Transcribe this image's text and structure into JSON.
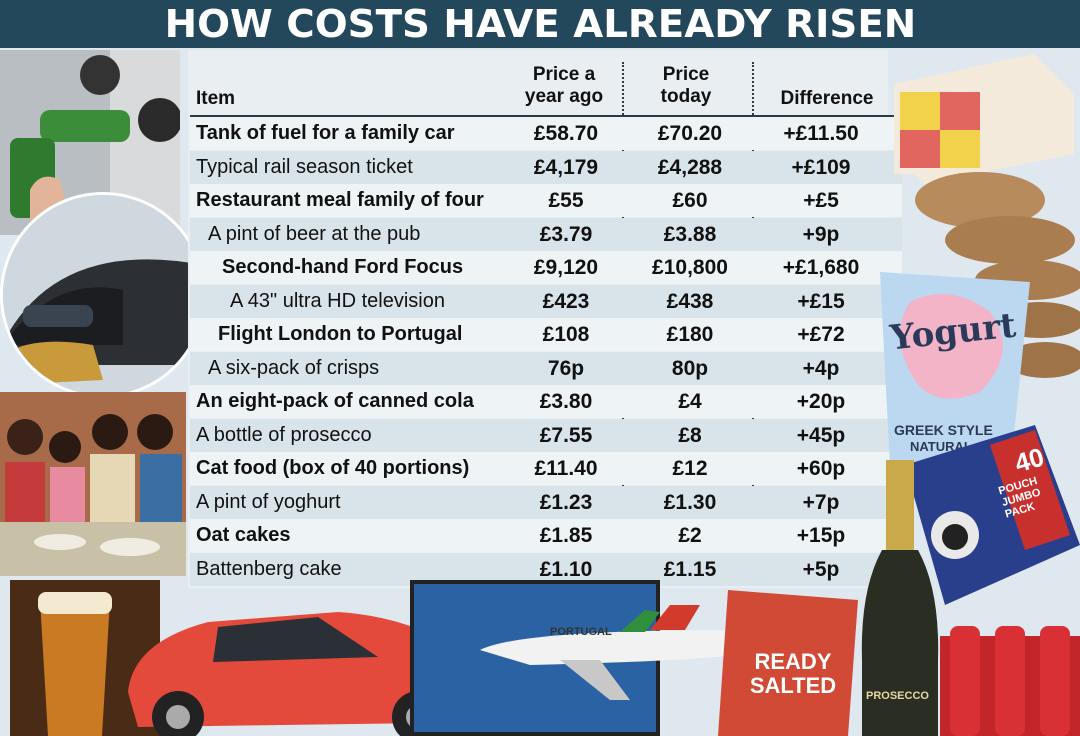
{
  "title": "HOW COSTS HAVE ALREADY RISEN",
  "headers": {
    "item": "Item",
    "year_ago": "Price a year ago",
    "today": "Price today",
    "difference": "Difference"
  },
  "chart_data": {
    "type": "table",
    "title": "HOW COSTS HAVE ALREADY RISEN",
    "columns": [
      "Item",
      "Price a year ago",
      "Price today",
      "Difference"
    ],
    "rows": [
      {
        "item": "Tank of fuel for a family car",
        "year_ago": "£58.70",
        "today": "£70.20",
        "difference": "+£11.50",
        "bold": true
      },
      {
        "item": "Typical rail season ticket",
        "year_ago": "£4,179",
        "today": "£4,288",
        "difference": "+£109",
        "bold": false
      },
      {
        "item": "Restaurant meal family of four",
        "year_ago": "£55",
        "today": "£60",
        "difference": "+£5",
        "bold": true
      },
      {
        "item": "A pint of beer at the pub",
        "year_ago": "£3.79",
        "today": "£3.88",
        "difference": "+9p",
        "bold": false
      },
      {
        "item": "Second-hand Ford Focus",
        "year_ago": "£9,120",
        "today": "£10,800",
        "difference": "+£1,680",
        "bold": true
      },
      {
        "item": "A 43\" ultra HD television",
        "year_ago": "£423",
        "today": "£438",
        "difference": "+£15",
        "bold": false
      },
      {
        "item": "Flight London to Portugal",
        "year_ago": "£108",
        "today": "£180",
        "difference": "+£72",
        "bold": true
      },
      {
        "item": "A six-pack of crisps",
        "year_ago": "76p",
        "today": "80p",
        "difference": "+4p",
        "bold": false
      },
      {
        "item": "An eight-pack of canned cola",
        "year_ago": "£3.80",
        "today": "£4",
        "difference": "+20p",
        "bold": true
      },
      {
        "item": "A bottle of prosecco",
        "year_ago": "£7.55",
        "today": "£8",
        "difference": "+45p",
        "bold": false
      },
      {
        "item": "Cat food (box of 40 portions)",
        "year_ago": "£11.40",
        "today": "£12",
        "difference": "+60p",
        "bold": true
      },
      {
        "item": "A pint of yoghurt",
        "year_ago": "£1.23",
        "today": "£1.30",
        "difference": "+7p",
        "bold": false
      },
      {
        "item": "Oat cakes",
        "year_ago": "£1.85",
        "today": "£2",
        "difference": "+15p",
        "bold": true
      },
      {
        "item": "Battenberg cake",
        "year_ago": "£1.10",
        "today": "£1.15",
        "difference": "+5p",
        "bold": false
      }
    ]
  },
  "decor": {
    "yogurt_label": "Yogurt",
    "yogurt_sub": "GREEK STYLE",
    "yogurt_sub2": "NATURAL",
    "catfood_count": "40",
    "catfood_text": "POUCH JUMBO PACK",
    "crisps_text": "READY SALTED",
    "plane_text": "PORTUGAL",
    "prosecco_text": "PROSECCO"
  },
  "colors": {
    "title_bg": "#23485c",
    "title_text": "#ffffff",
    "table_bg": "#e8eef2",
    "row_band": "#d9e4ea"
  }
}
